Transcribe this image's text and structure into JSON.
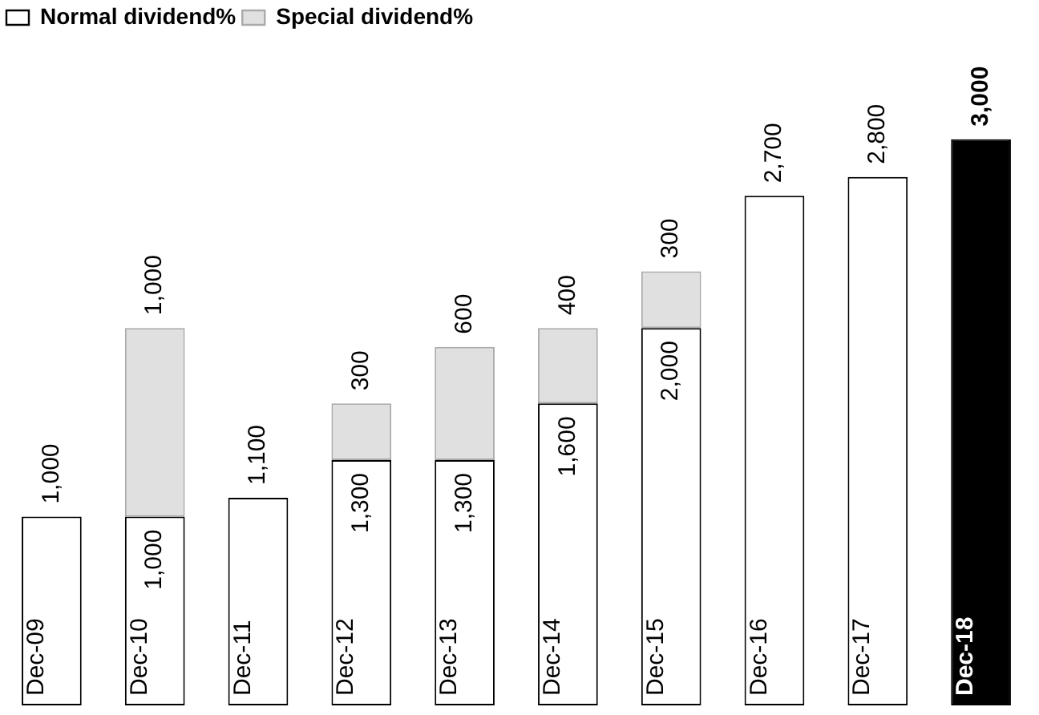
{
  "chart_data": {
    "type": "bar",
    "stacked": true,
    "legend": "top left",
    "data_labels": true,
    "categories": [
      "Dec-09",
      "Dec-10",
      "Dec-11",
      "Dec-12",
      "Dec-13",
      "Dec-14",
      "Dec-15",
      "Dec-16",
      "Dec-17",
      "Dec-18"
    ],
    "series": [
      {
        "name": "Normal dividend%",
        "color": "#ffffff",
        "colors": [
          "#ffffff",
          "#ffffff",
          "#ffffff",
          "#ffffff",
          "#ffffff",
          "#ffffff",
          "#ffffff",
          "#ffffff",
          "#ffffff",
          "#000000"
        ],
        "values": [
          1000,
          1000,
          1100,
          1300,
          1300,
          1600,
          2000,
          2700,
          2800,
          3000
        ],
        "value_labels": [
          "1,000",
          "1,000",
          "1,100",
          "1,300",
          "1,300",
          "1,600",
          "2,000",
          "2,700",
          "2,800",
          "3,000"
        ]
      },
      {
        "name": "Special dividend%",
        "color": "#e0e0e0",
        "values": [
          null,
          1000,
          null,
          300,
          600,
          400,
          300,
          null,
          null,
          null
        ],
        "value_labels": [
          null,
          "1,000",
          null,
          "300",
          "600",
          "400",
          "300",
          null,
          null,
          null
        ]
      }
    ]
  }
}
